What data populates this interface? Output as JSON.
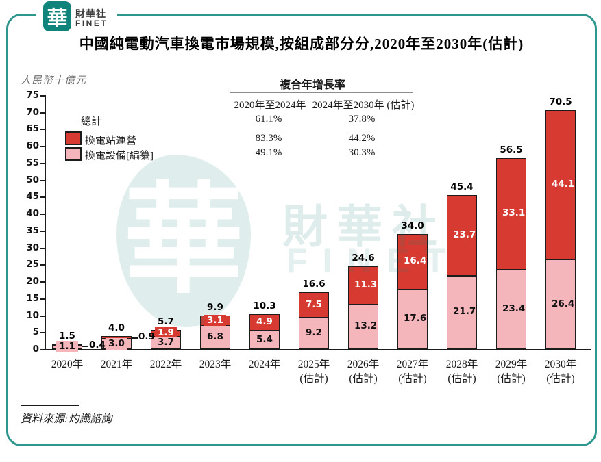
{
  "brand": {
    "logo_char": "華",
    "name_zh": "財華社",
    "name_en": "FINET"
  },
  "title": "中國純電動汽車換電市場規模,按組成部分分,2020年至2030年(估計)",
  "y_axis_title": "人民幣十億元",
  "source": "資料來源:灼識諮詢",
  "watermark": {
    "char": "華",
    "text_zh": "財華社",
    "text_en": "FINET"
  },
  "colors": {
    "teal_frame": "#2f968e",
    "logo_teal": "#10847b",
    "station_red": "#d63a30",
    "equipment_pink": "#f5b6bb"
  },
  "cagr_table": {
    "title": "複合年增長率",
    "columns": [
      "2020年至2024年",
      "2024年至2030年 (估計)"
    ],
    "rows": [
      {
        "label": "總計",
        "values": [
          "61.1%",
          "37.8%"
        ]
      },
      {
        "label": "換電站運營",
        "values": [
          "83.3%",
          "44.2%"
        ]
      },
      {
        "label": "換電設備[編纂]",
        "values": [
          "49.1%",
          "30.3%"
        ]
      }
    ]
  },
  "chart_data": {
    "type": "bar",
    "stacked": true,
    "title": "中國純電動汽車換電市場規模,按組成部分分,2020年至2030年(估計)",
    "ylabel": "人民幣十億元",
    "ylim": [
      0,
      75
    ],
    "ytick_step": 5,
    "grid": false,
    "legend_position": "upper-left",
    "categories": [
      {
        "label": "2020年",
        "sublabel": ""
      },
      {
        "label": "2021年",
        "sublabel": ""
      },
      {
        "label": "2022年",
        "sublabel": ""
      },
      {
        "label": "2023年",
        "sublabel": ""
      },
      {
        "label": "2024年",
        "sublabel": ""
      },
      {
        "label": "2025年",
        "sublabel": "(估計)"
      },
      {
        "label": "2026年",
        "sublabel": "(估計)"
      },
      {
        "label": "2027年",
        "sublabel": "(估計)"
      },
      {
        "label": "2028年",
        "sublabel": "(估計)"
      },
      {
        "label": "2029年",
        "sublabel": "(估計)"
      },
      {
        "label": "2030年",
        "sublabel": "(估計)"
      }
    ],
    "series": [
      {
        "name": "換電設備[編纂]",
        "color": "#f5b6bb",
        "text_color": "#111111",
        "values": [
          1.1,
          3.0,
          3.7,
          6.8,
          5.4,
          9.2,
          13.2,
          17.6,
          21.7,
          23.4,
          26.4
        ]
      },
      {
        "name": "換電站運營",
        "color": "#d63a30",
        "text_color": "#ffffff",
        "values": [
          0.4,
          0.9,
          1.9,
          3.1,
          4.9,
          7.5,
          11.3,
          16.4,
          23.7,
          33.1,
          44.1
        ]
      }
    ],
    "totals": [
      1.5,
      4.0,
      5.7,
      9.9,
      10.3,
      16.6,
      24.6,
      34.0,
      45.4,
      56.5,
      70.5
    ]
  }
}
